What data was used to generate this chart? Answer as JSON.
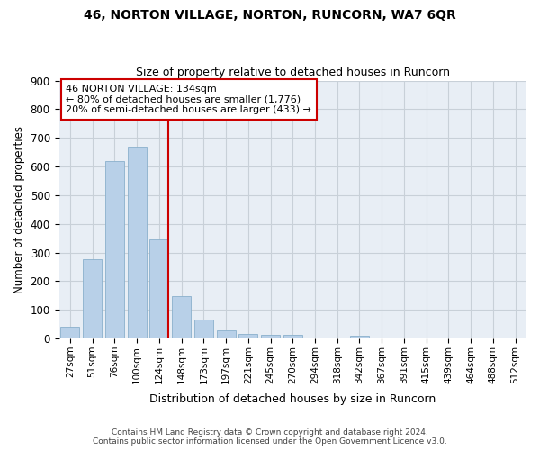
{
  "title1": "46, NORTON VILLAGE, NORTON, RUNCORN, WA7 6QR",
  "title2": "Size of property relative to detached houses in Runcorn",
  "xlabel": "Distribution of detached houses by size in Runcorn",
  "ylabel": "Number of detached properties",
  "categories": [
    "27sqm",
    "51sqm",
    "76sqm",
    "100sqm",
    "124sqm",
    "148sqm",
    "173sqm",
    "197sqm",
    "221sqm",
    "245sqm",
    "270sqm",
    "294sqm",
    "318sqm",
    "342sqm",
    "367sqm",
    "391sqm",
    "415sqm",
    "439sqm",
    "464sqm",
    "488sqm",
    "512sqm"
  ],
  "values": [
    42,
    278,
    620,
    668,
    347,
    148,
    67,
    30,
    15,
    12,
    12,
    0,
    0,
    10,
    0,
    0,
    0,
    0,
    0,
    0,
    0
  ],
  "bar_color": "#b8d0e8",
  "bar_edge_color": "#8ab0cc",
  "annotation_text1": "46 NORTON VILLAGE: 134sqm",
  "annotation_text2": "← 80% of detached houses are smaller (1,776)",
  "annotation_text3": "20% of semi-detached houses are larger (433) →",
  "annotation_box_color": "#ffffff",
  "annotation_box_edge": "#cc0000",
  "vline_color": "#cc0000",
  "footer1": "Contains HM Land Registry data © Crown copyright and database right 2024.",
  "footer2": "Contains public sector information licensed under the Open Government Licence v3.0.",
  "ylim": [
    0,
    900
  ],
  "bg_color": "#ffffff",
  "plot_bg_color": "#e8eef5",
  "grid_color": "#c8d0d8"
}
